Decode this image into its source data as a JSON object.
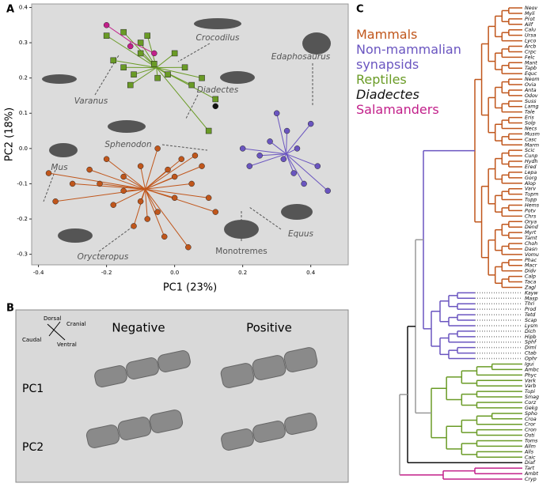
{
  "chart_data": {
    "type": "scatter",
    "panel_label": "A",
    "xlabel": "PC1 (23%)",
    "ylabel": "PC2 (18%)",
    "xlim": [
      -0.42,
      0.51
    ],
    "ylim": [
      -0.33,
      0.41
    ],
    "xticks": [
      -0.4,
      -0.2,
      {
        "value": 0,
        "label": "0.0"
      },
      0.2,
      0.4
    ],
    "yticks": [
      -0.3,
      -0.2,
      -0.1,
      {
        "value": 0,
        "label": "0.0"
      },
      0.1,
      0.2,
      0.3,
      0.4
    ],
    "series": [
      {
        "color": "#c0561b",
        "marker": "circle",
        "x": [
          -0.37,
          -0.35,
          -0.3,
          -0.25,
          -0.2,
          -0.15,
          -0.1,
          -0.05,
          0.0,
          0.02,
          -0.08,
          -0.05,
          -0.12,
          0.05,
          0.1,
          -0.03,
          0.0,
          -0.15,
          0.08,
          0.04,
          -0.18,
          -0.22,
          0.12,
          -0.02,
          -0.1,
          0.06
        ],
        "y": [
          -0.07,
          -0.15,
          -0.1,
          -0.06,
          -0.03,
          -0.12,
          -0.05,
          0.0,
          -0.08,
          -0.03,
          -0.2,
          -0.18,
          -0.22,
          -0.1,
          -0.14,
          -0.25,
          -0.14,
          -0.08,
          -0.05,
          -0.28,
          -0.16,
          -0.1,
          -0.18,
          -0.06,
          -0.15,
          -0.02
        ]
      },
      {
        "color": "#6a55c0",
        "marker": "circle",
        "x": [
          0.2,
          0.25,
          0.28,
          0.32,
          0.35,
          0.38,
          0.42,
          0.33,
          0.4,
          0.45,
          0.3,
          0.22,
          0.36
        ],
        "y": [
          0.0,
          -0.02,
          0.02,
          -0.03,
          -0.07,
          -0.1,
          -0.05,
          0.05,
          0.07,
          -0.12,
          0.1,
          -0.05,
          0.0
        ]
      },
      {
        "color": "#6a9b26",
        "marker": "square",
        "x": [
          -0.2,
          -0.15,
          -0.1,
          -0.08,
          -0.1,
          -0.15,
          -0.18,
          -0.12,
          -0.05,
          0.0,
          0.03,
          0.1,
          -0.06,
          -0.02,
          0.05,
          0.08,
          -0.13,
          0.12
        ],
        "y": [
          0.32,
          0.33,
          0.3,
          0.32,
          0.27,
          0.23,
          0.25,
          0.21,
          0.2,
          0.27,
          0.23,
          0.05,
          0.24,
          0.21,
          0.18,
          0.2,
          0.18,
          0.14
        ]
      },
      {
        "color": "#111111",
        "marker": "circle",
        "x": [
          0.12
        ],
        "y": [
          0.12
        ]
      },
      {
        "color": "#c2208a",
        "marker": "circle",
        "x": [
          -0.2,
          -0.13,
          -0.06
        ],
        "y": [
          0.35,
          0.29,
          0.27
        ]
      }
    ],
    "annotations": [
      "Crocodilus",
      "Edaphosaurus",
      "Varanus",
      "Diadectes",
      "Sphenodon",
      "Mus",
      "Equus",
      "Orycteropus",
      "Monotremes"
    ]
  },
  "panel_b": {
    "label": "B",
    "columns": [
      "Negative",
      "Positive"
    ],
    "rows": [
      "PC1",
      "PC2"
    ],
    "directions": [
      "Dorsal",
      "Cranial",
      "Caudal",
      "Ventral"
    ]
  },
  "tree": {
    "label": "C",
    "groups": [
      {
        "name": "Mammals",
        "color": "#c0561b",
        "taxa": [
          "Neov",
          "Myli",
          "Prot",
          "Ailf",
          "Calu",
          "Ursa",
          "Lyco",
          "Arcb",
          "Crpc",
          "Felc",
          "Mant",
          "Tapb",
          "Equc",
          "Neom",
          "Ovia",
          "Anta",
          "Odov",
          "Suss",
          "Lamg",
          "Tale",
          "Eris",
          "Solp",
          "Necs",
          "Musm",
          "Casc",
          "Marm",
          "Scic",
          "Cunp",
          "Hydh",
          "Ered",
          "Lepa",
          "Gorg",
          "Alop",
          "Varv",
          "Tupm",
          "Tupp",
          "Hems",
          "Potv",
          "Chrs",
          "Orya",
          "Dend",
          "Myrt",
          "Tamt",
          "Choh",
          "Dasn",
          "Vomu",
          "Phac",
          "Macr",
          "Didv",
          "Calp",
          "Taca",
          "Zagl"
        ]
      },
      {
        "name": "Non-mammalian synapsids",
        "color": "#6a55c0",
        "taxa": [
          "Kayw",
          "Masp",
          "Thri",
          "Prod",
          "Tetd",
          "Scap",
          "Lysm",
          "Dich",
          "Hipb",
          "Sphf",
          "Diml",
          "Ctab",
          "Ophr"
        ]
      },
      {
        "name": "Reptiles",
        "color": "#6a9b26",
        "taxa": [
          "Igui",
          "Ambc",
          "Phyc",
          "Vark",
          "Varb",
          "Tupi",
          "Smag",
          "Corz",
          "Gekg",
          "Spho",
          "Croa",
          "Cror",
          "Cron",
          "Osti",
          "Toms",
          "Allm",
          "Alls",
          "Caic"
        ]
      },
      {
        "name": "Diadectes",
        "color": "#111111",
        "taxa": [
          "Diaf"
        ]
      },
      {
        "name": "Salamanders",
        "color": "#c2208a",
        "taxa": [
          "Tart",
          "Ambt",
          "Cryp"
        ]
      }
    ]
  }
}
